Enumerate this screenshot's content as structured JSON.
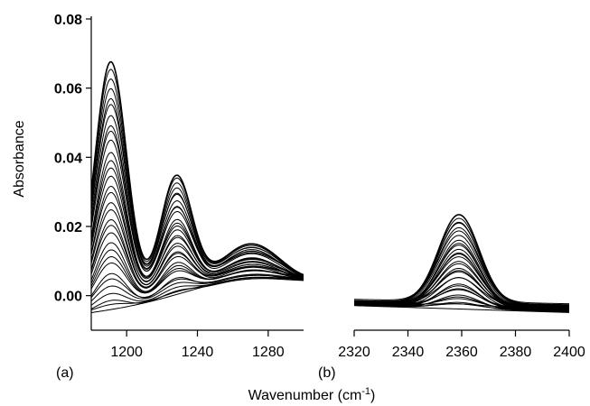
{
  "chart_data": {
    "type": "line",
    "ylabel": "Absorbance",
    "xlabel_main": "Wavenumber (cm",
    "xlabel_sup": "-1",
    "xlabel_close": ")",
    "ylim": [
      -0.01,
      0.08
    ],
    "yticks": [
      0.0,
      0.02,
      0.04,
      0.06,
      0.08
    ],
    "ytick_labels": [
      "0.00",
      "0.02",
      "0.04",
      "0.06",
      "0.08"
    ],
    "line_color": "#000000",
    "series_count": 32,
    "panels": [
      {
        "label": "(a)",
        "xlim": [
          1180,
          1300
        ],
        "xticks": [
          1200,
          1240,
          1280
        ],
        "xtick_labels": [
          "1200",
          "1240",
          "1280"
        ],
        "peaks": [
          {
            "center": 1191,
            "width": 9,
            "max_height": 0.07
          },
          {
            "center": 1228,
            "width": 9,
            "max_height": 0.034
          },
          {
            "center": 1270,
            "width": 17,
            "max_height": 0.012
          }
        ],
        "baseline_left": -0.008,
        "baseline_right": 0.0,
        "first_spectrum_level": 0.003
      },
      {
        "label": "(b)",
        "xlim": [
          2320,
          2400
        ],
        "xticks": [
          2320,
          2340,
          2360,
          2380,
          2400
        ],
        "xtick_labels": [
          "2320",
          "2340",
          "2360",
          "2380",
          "2400"
        ],
        "peaks": [
          {
            "center": 2359,
            "width": 7.5,
            "max_height": 0.0255
          }
        ],
        "baseline_left": -0.0025,
        "baseline_right": -0.0045,
        "first_spectrum_level": 0.0
      }
    ]
  }
}
